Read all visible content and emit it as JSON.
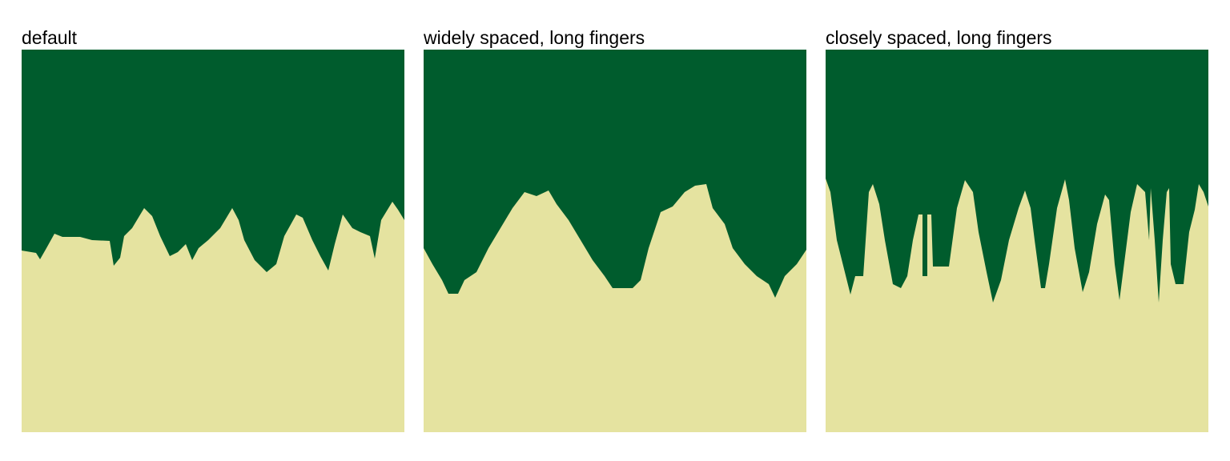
{
  "panels": [
    {
      "title": "default"
    },
    {
      "title": "widely spaced, long fingers"
    },
    {
      "title": "closely spaced, long fingers"
    }
  ]
}
